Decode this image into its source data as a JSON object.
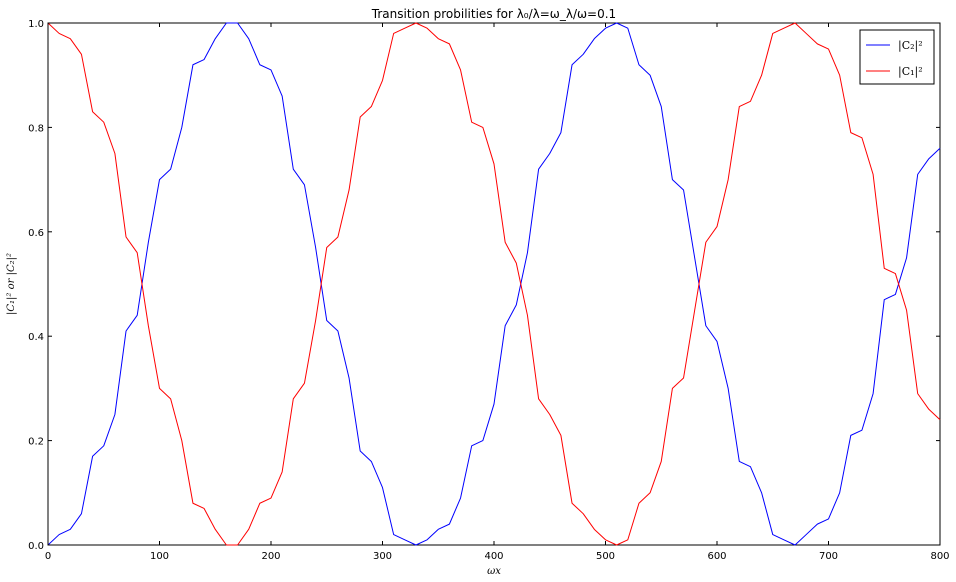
{
  "chart_data": {
    "type": "line",
    "title": "Transition probilities for λ₀/λ=ω_λ/ω=0.1",
    "xlabel": "ωx",
    "ylabel": "|C₁|² or |C₂|²",
    "xlim": [
      0,
      800
    ],
    "ylim": [
      0,
      1.0
    ],
    "xticks": [
      "0",
      "100",
      "200",
      "300",
      "400",
      "500",
      "600",
      "700",
      "800"
    ],
    "yticks": [
      "0.0",
      "0.2",
      "0.4",
      "0.6",
      "0.8",
      "1.0"
    ],
    "grid": false,
    "legend_position": "top-right",
    "x": [
      0,
      10,
      20,
      30,
      40,
      50,
      60,
      70,
      80,
      90,
      100,
      110,
      120,
      130,
      140,
      150,
      160,
      170,
      180,
      190,
      200,
      210,
      220,
      230,
      240,
      250,
      260,
      270,
      280,
      290,
      300,
      310,
      320,
      330,
      340,
      350,
      360,
      370,
      380,
      390,
      400,
      410,
      420,
      430,
      440,
      450,
      460,
      470,
      480,
      490,
      500,
      510,
      520,
      530,
      540,
      550,
      560,
      570,
      580,
      590,
      600,
      610,
      620,
      630,
      640,
      650,
      660,
      670,
      680,
      690,
      700,
      710,
      720,
      730,
      740,
      750,
      760,
      770,
      780,
      790,
      800
    ],
    "series": [
      {
        "name": "|C₂|²",
        "color": "#0000ff",
        "values": [
          0.0,
          0.02,
          0.03,
          0.06,
          0.17,
          0.19,
          0.25,
          0.41,
          0.44,
          0.58,
          0.7,
          0.72,
          0.8,
          0.92,
          0.93,
          0.97,
          1.0,
          1.0,
          0.97,
          0.92,
          0.91,
          0.86,
          0.72,
          0.69,
          0.57,
          0.43,
          0.41,
          0.32,
          0.18,
          0.16,
          0.11,
          0.02,
          0.01,
          0.0,
          0.01,
          0.03,
          0.04,
          0.09,
          0.19,
          0.2,
          0.27,
          0.42,
          0.46,
          0.56,
          0.72,
          0.75,
          0.79,
          0.92,
          0.94,
          0.97,
          0.99,
          1.0,
          0.99,
          0.92,
          0.9,
          0.84,
          0.7,
          0.68,
          0.55,
          0.42,
          0.39,
          0.3,
          0.16,
          0.15,
          0.1,
          0.02,
          0.01,
          0.0,
          0.02,
          0.04,
          0.05,
          0.1,
          0.21,
          0.22,
          0.29,
          0.47,
          0.48,
          0.55,
          0.71,
          0.74,
          0.76
        ]
      },
      {
        "name": "|C₁|²",
        "color": "#ff0000",
        "values": [
          1.0,
          0.98,
          0.97,
          0.94,
          0.83,
          0.81,
          0.75,
          0.59,
          0.56,
          0.42,
          0.3,
          0.28,
          0.2,
          0.08,
          0.07,
          0.03,
          0.0,
          0.0,
          0.03,
          0.08,
          0.09,
          0.14,
          0.28,
          0.31,
          0.43,
          0.57,
          0.59,
          0.68,
          0.82,
          0.84,
          0.89,
          0.98,
          0.99,
          1.0,
          0.99,
          0.97,
          0.96,
          0.91,
          0.81,
          0.8,
          0.73,
          0.58,
          0.54,
          0.44,
          0.28,
          0.25,
          0.21,
          0.08,
          0.06,
          0.03,
          0.01,
          0.0,
          0.01,
          0.08,
          0.1,
          0.16,
          0.3,
          0.32,
          0.45,
          0.58,
          0.61,
          0.7,
          0.84,
          0.85,
          0.9,
          0.98,
          0.99,
          1.0,
          0.98,
          0.96,
          0.95,
          0.9,
          0.79,
          0.78,
          0.71,
          0.53,
          0.52,
          0.45,
          0.29,
          0.26,
          0.24
        ]
      }
    ]
  }
}
